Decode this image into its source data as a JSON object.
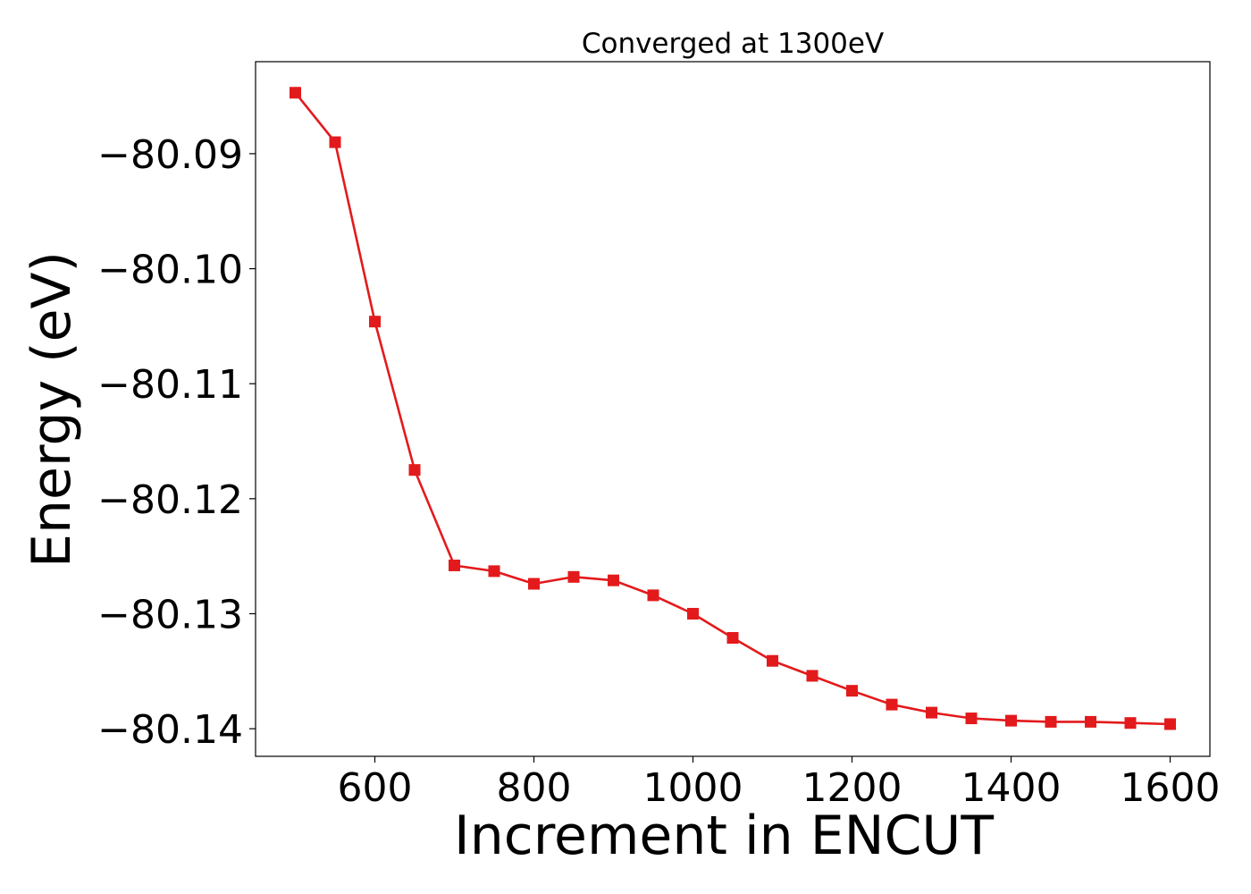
{
  "chart_data": {
    "type": "line",
    "title": "Converged at 1300eV",
    "xlabel": "Increment in ENCUT",
    "ylabel": "Energy (eV)",
    "xlim": [
      450,
      1650
    ],
    "ylim": [
      -80.1424,
      -80.082
    ],
    "xticks": [
      600,
      800,
      1000,
      1200,
      1400,
      1600
    ],
    "xtick_labels": [
      "600",
      "800",
      "1000",
      "1200",
      "1400",
      "1600"
    ],
    "yticks": [
      -80.09,
      -80.1,
      -80.11,
      -80.12,
      -80.13,
      -80.14
    ],
    "ytick_labels": [
      "−80.09",
      "−80.10",
      "−80.11",
      "−80.12",
      "−80.13",
      "−80.14"
    ],
    "grid": false,
    "legend": false,
    "series": [
      {
        "color": "#e31a1c",
        "marker": "square",
        "x": [
          500,
          550,
          600,
          650,
          700,
          750,
          800,
          850,
          900,
          950,
          1000,
          1050,
          1100,
          1150,
          1200,
          1250,
          1300,
          1350,
          1400,
          1450,
          1500,
          1550,
          1600
        ],
        "y": [
          -80.0847,
          -80.089,
          -80.1046,
          -80.1175,
          -80.1258,
          -80.1263,
          -80.1274,
          -80.1268,
          -80.1271,
          -80.1284,
          -80.13,
          -80.1321,
          -80.1341,
          -80.1354,
          -80.1367,
          -80.1379,
          -80.1386,
          -80.1391,
          -80.1393,
          -80.1394,
          -80.1394,
          -80.1395,
          -80.1396
        ]
      }
    ]
  }
}
